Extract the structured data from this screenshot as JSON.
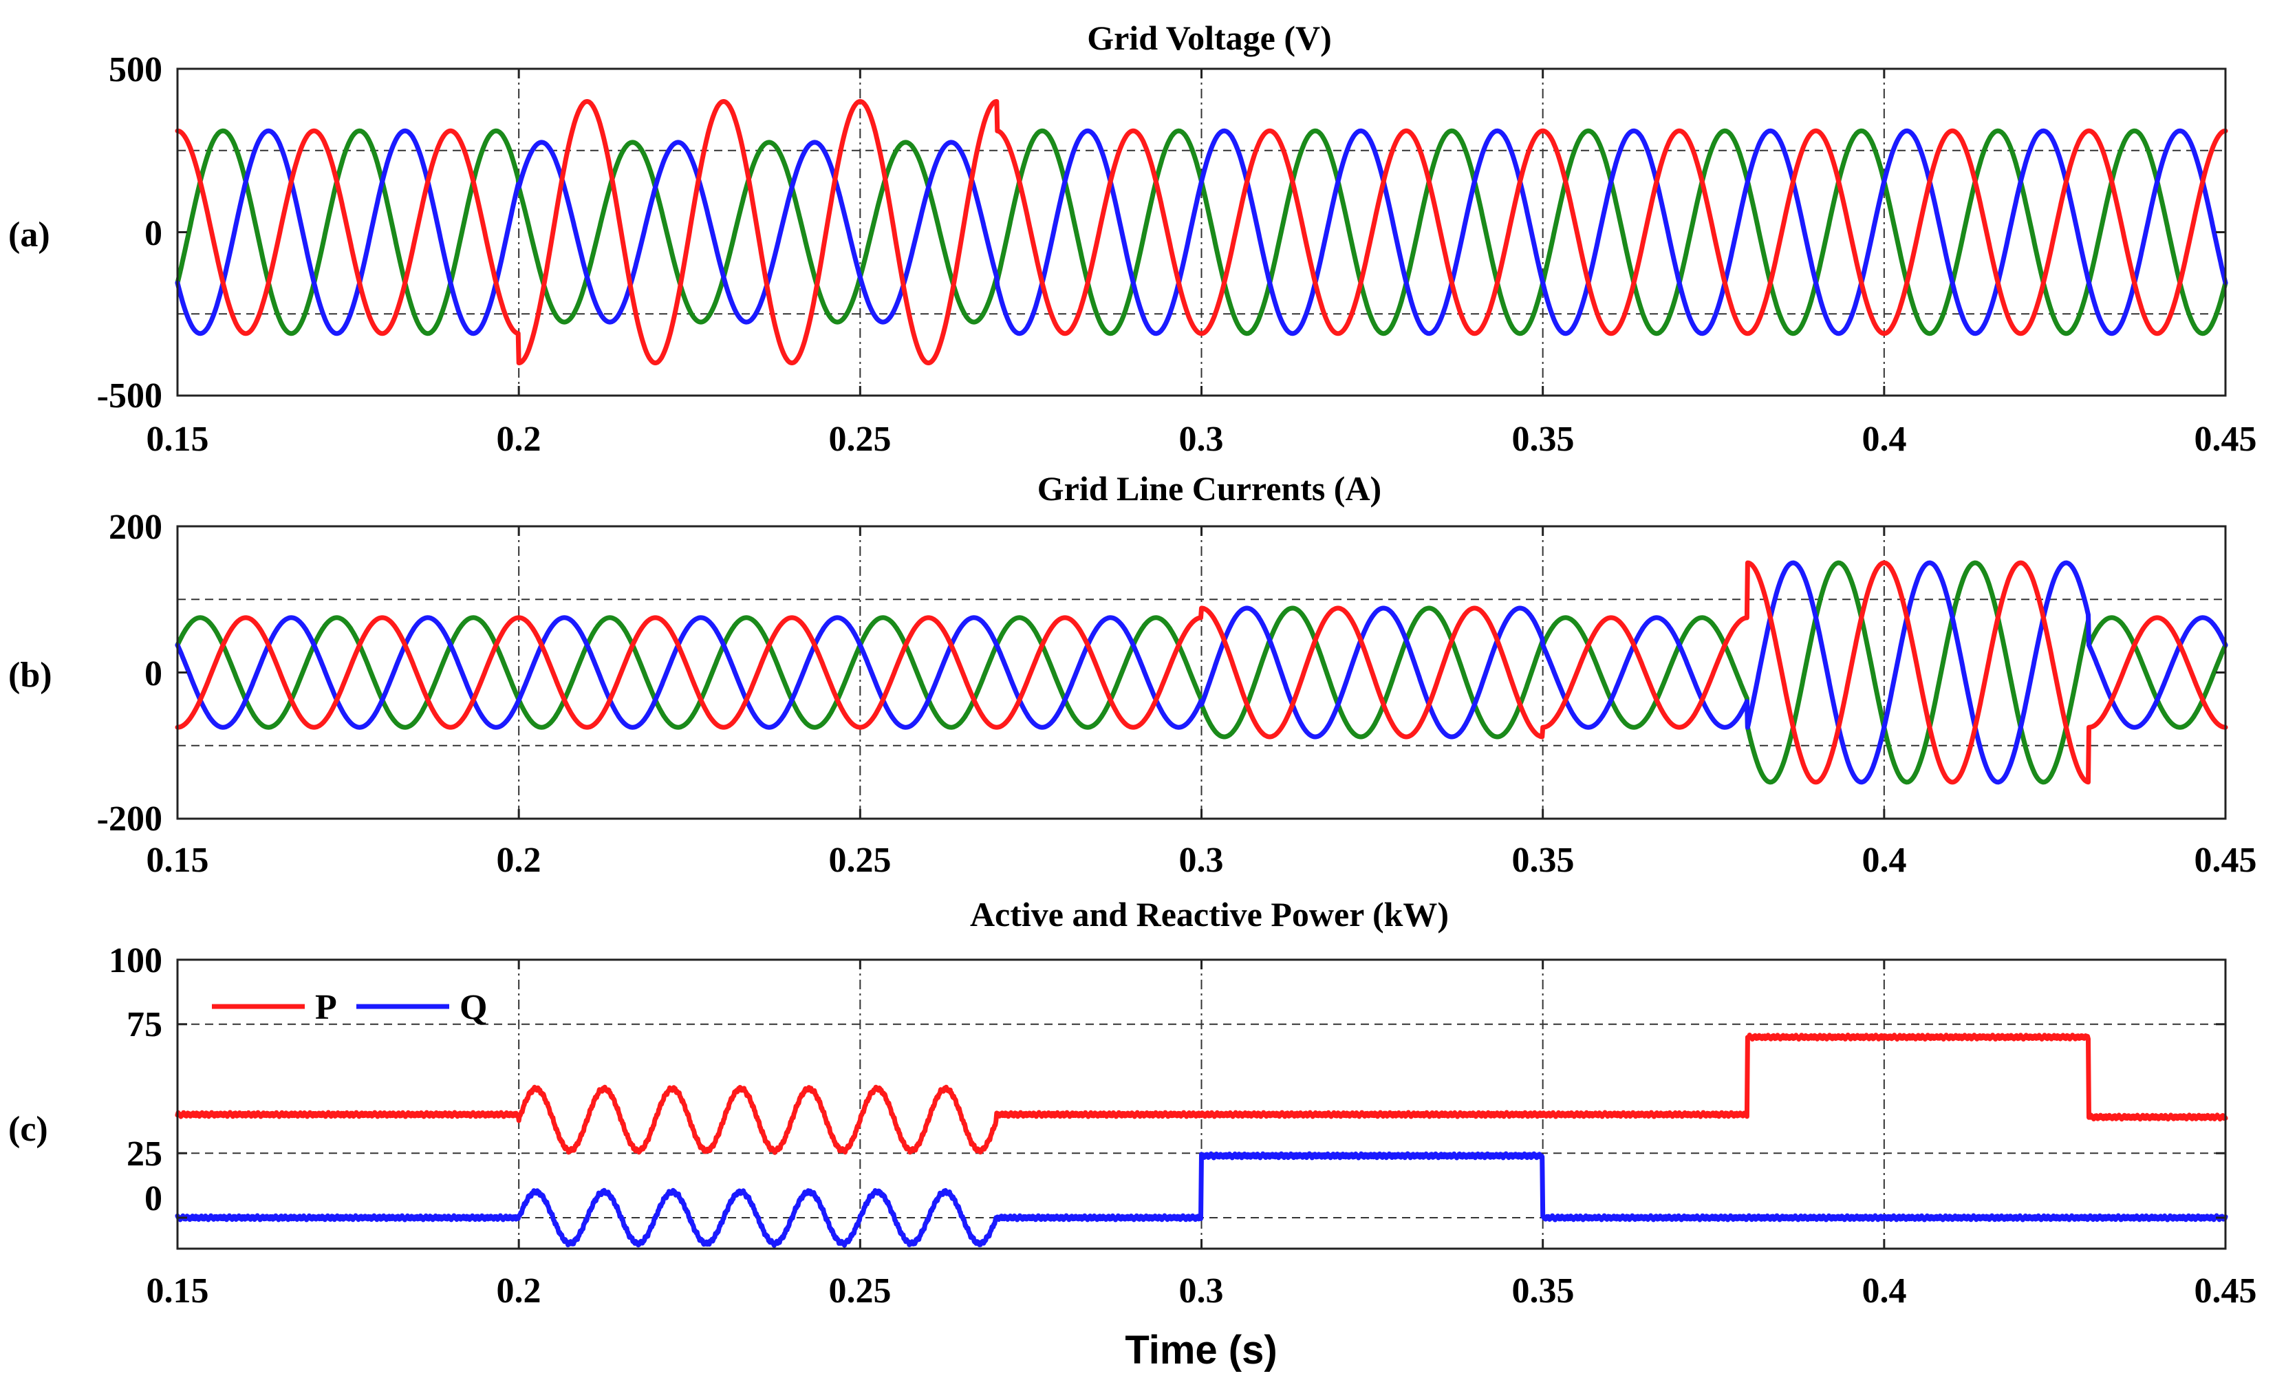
{
  "figure": {
    "xlabel": "Time (s)",
    "xlim": [
      0.15,
      0.45
    ],
    "xticks": [
      "0.15",
      "0.2",
      "0.25",
      "0.3",
      "0.35",
      "0.4",
      "0.45"
    ],
    "xtick_values": [
      0.15,
      0.2,
      0.25,
      0.3,
      0.35,
      0.4,
      0.45
    ],
    "colors": {
      "phase_a": "#ff1a1a",
      "phase_b": "#1a1aff",
      "phase_c": "#1a8a1a",
      "P": "#ff1a1a",
      "Q": "#1a1aff"
    }
  },
  "chart_data": [
    {
      "type": "line",
      "panel_label": "(a)",
      "title": "Grid Voltage (V)",
      "xlabel": "",
      "ylabel": "",
      "ylim": [
        -500,
        500
      ],
      "yticks": [
        "500",
        "0",
        "-500"
      ],
      "ytick_values": [
        500,
        0,
        -500
      ],
      "reference_lines": [
        250,
        -250
      ],
      "frequency_hz": 50,
      "series": [
        {
          "name": "phase-red",
          "color": "#ff1a1a",
          "nominal_amplitude": 310,
          "phase_deg": -90
        },
        {
          "name": "phase-blue",
          "color": "#1a1aff",
          "nominal_amplitude": 310,
          "phase_deg": 30
        },
        {
          "name": "phase-green",
          "color": "#1a8a1a",
          "nominal_amplitude": 310,
          "phase_deg": 150
        }
      ],
      "events": [
        {
          "t_start": 0.2,
          "t_end": 0.27,
          "description": "unbalanced / disturbed voltage",
          "red_amplitude": 400,
          "other_amplitude": 275
        }
      ]
    },
    {
      "type": "line",
      "panel_label": "(b)",
      "title": "Grid Line Currents (A)",
      "xlabel": "",
      "ylabel": "",
      "ylim": [
        -200,
        200
      ],
      "yticks": [
        "200",
        "0",
        "-200"
      ],
      "ytick_values": [
        200,
        0,
        -200
      ],
      "reference_lines": [
        100,
        -100
      ],
      "frequency_hz": 50,
      "amplitude_segments": [
        {
          "t_start": 0.15,
          "t_end": 0.3,
          "amplitude": 75
        },
        {
          "t_start": 0.3,
          "t_end": 0.35,
          "amplitude": 88
        },
        {
          "t_start": 0.35,
          "t_end": 0.38,
          "amplitude": 75
        },
        {
          "t_start": 0.38,
          "t_end": 0.43,
          "amplitude": 150
        },
        {
          "t_start": 0.43,
          "t_end": 0.45,
          "amplitude": 75
        }
      ],
      "series": [
        {
          "name": "phase-red",
          "color": "#ff1a1a",
          "phase_deg": 90
        },
        {
          "name": "phase-blue",
          "color": "#1a1aff",
          "phase_deg": -30
        },
        {
          "name": "phase-green",
          "color": "#1a8a1a",
          "phase_deg": 210
        }
      ]
    },
    {
      "type": "line",
      "panel_label": "(c)",
      "title": "Active and Reactive Power (kW)",
      "xlabel": "",
      "ylabel": "",
      "ylim": [
        -12,
        100
      ],
      "yticks": [
        "100",
        "75",
        "25",
        "0"
      ],
      "ytick_values": [
        100,
        75,
        25,
        0
      ],
      "reference_lines": [
        75,
        25,
        0
      ],
      "legend": {
        "placement": "top-left",
        "entries": [
          "P",
          "Q"
        ]
      },
      "series": [
        {
          "name": "P",
          "color": "#ff1a1a",
          "segments": [
            {
              "t_start": 0.15,
              "t_end": 0.2,
              "level": 40
            },
            {
              "t_start": 0.2,
              "t_end": 0.27,
              "level": 38,
              "oscillation_amplitude": 12,
              "oscillation_hz": 100
            },
            {
              "t_start": 0.27,
              "t_end": 0.38,
              "level": 40
            },
            {
              "t_start": 0.38,
              "t_end": 0.43,
              "level": 70
            },
            {
              "t_start": 0.43,
              "t_end": 0.45,
              "level": 39
            }
          ]
        },
        {
          "name": "Q",
          "color": "#1a1aff",
          "segments": [
            {
              "t_start": 0.15,
              "t_end": 0.2,
              "level": 0
            },
            {
              "t_start": 0.2,
              "t_end": 0.27,
              "level": 0,
              "oscillation_amplitude": 10,
              "oscillation_hz": 100
            },
            {
              "t_start": 0.27,
              "t_end": 0.3,
              "level": 0
            },
            {
              "t_start": 0.3,
              "t_end": 0.35,
              "level": 24
            },
            {
              "t_start": 0.35,
              "t_end": 0.45,
              "level": 0
            }
          ]
        }
      ]
    }
  ]
}
